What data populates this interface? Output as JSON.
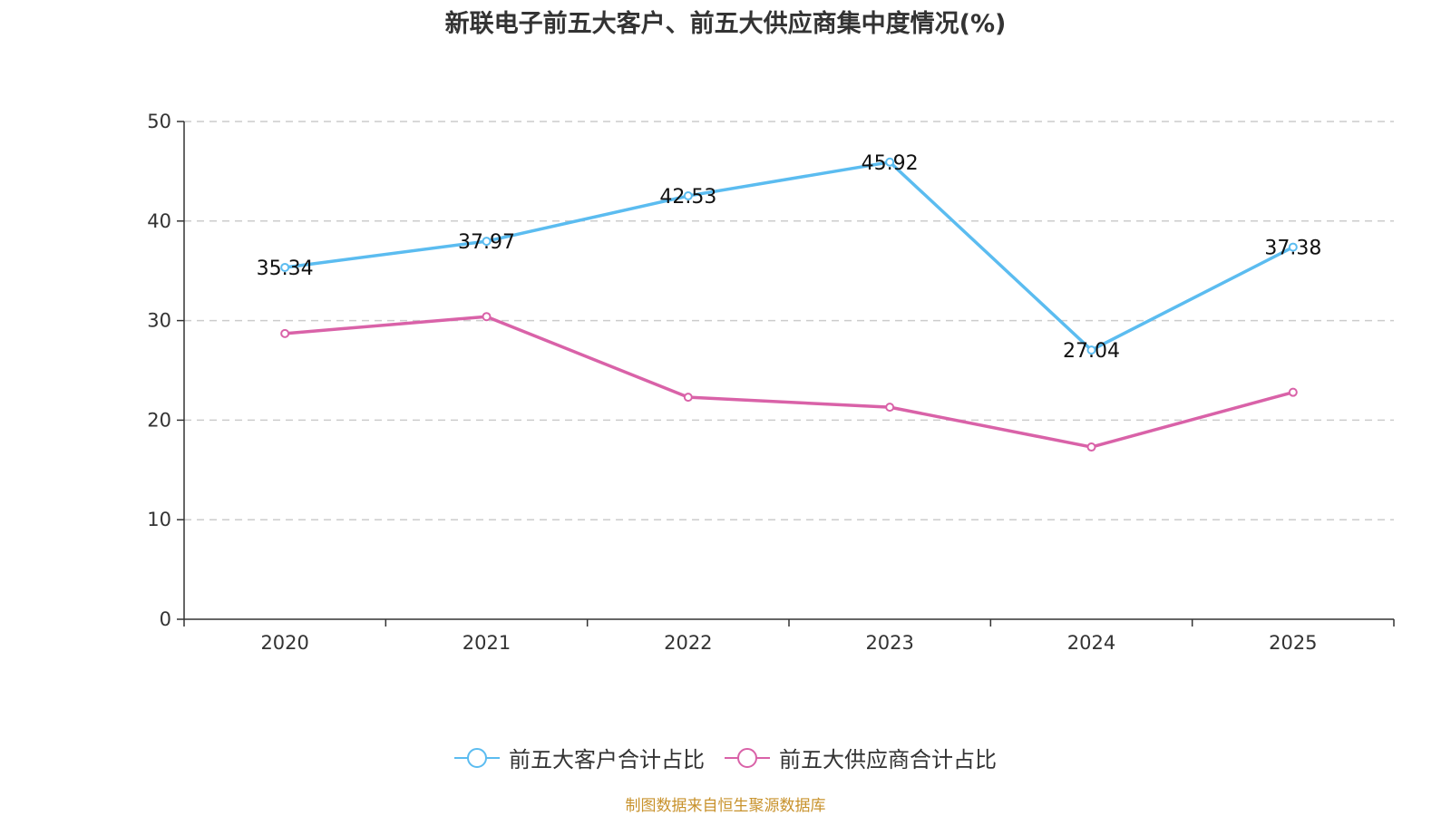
{
  "chart_data": {
    "type": "line",
    "title": "新联电子前五大客户、前五大供应商集中度情况(%)",
    "xlabel": "",
    "ylabel": "",
    "categories": [
      "2020",
      "2021",
      "2022",
      "2023",
      "2024",
      "2025"
    ],
    "ylim": [
      0,
      50
    ],
    "yticks": [
      0,
      10,
      20,
      30,
      40,
      50
    ],
    "grid": true,
    "legend_position": "bottom-center",
    "series": [
      {
        "name": "前五大客户合计占比",
        "color": "#5bbcf0",
        "values": [
          35.34,
          37.97,
          42.53,
          45.92,
          27.04,
          37.38
        ],
        "show_labels": true
      },
      {
        "name": "前五大供应商合计占比",
        "color": "#d962a8",
        "values": [
          28.7,
          30.4,
          22.3,
          21.3,
          17.3,
          22.8
        ],
        "show_labels": false
      }
    ]
  },
  "source": "制图数据来自恒生聚源数据库"
}
